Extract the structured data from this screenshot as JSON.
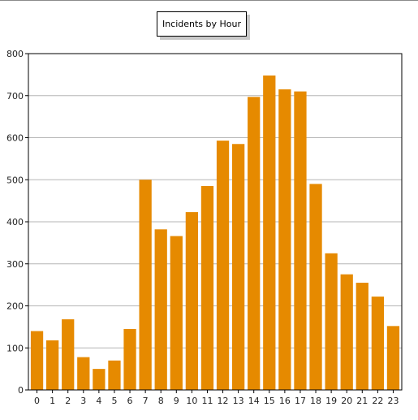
{
  "chart_data": {
    "type": "bar",
    "title": "Incidents by Hour",
    "xlabel": "",
    "ylabel": "",
    "categories": [
      "0",
      "1",
      "2",
      "3",
      "4",
      "5",
      "6",
      "7",
      "8",
      "9",
      "10",
      "11",
      "12",
      "13",
      "14",
      "15",
      "16",
      "17",
      "18",
      "19",
      "20",
      "21",
      "22",
      "23"
    ],
    "values": [
      140,
      118,
      168,
      78,
      50,
      70,
      145,
      500,
      382,
      366,
      423,
      485,
      593,
      585,
      697,
      748,
      715,
      710,
      490,
      325,
      275,
      255,
      222,
      152
    ],
    "ylim": [
      0,
      800
    ],
    "yticks": [
      0,
      100,
      200,
      300,
      400,
      500,
      600,
      700,
      800
    ],
    "grid": true,
    "bar_color": "#e68a00"
  }
}
